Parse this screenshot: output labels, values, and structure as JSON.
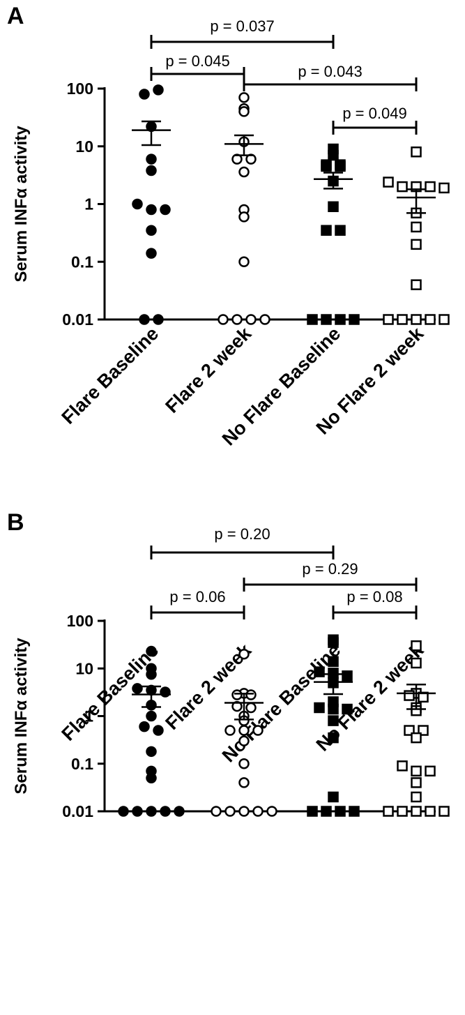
{
  "chart_data": [
    {
      "panel": "A",
      "type": "scatter",
      "ylabel": "Serum INFα activity",
      "yscale": "log",
      "ylim": [
        0.01,
        100
      ],
      "yticks": [
        "0.01",
        "0.1",
        "1",
        "10",
        "100"
      ],
      "categories": [
        "Flare Baseline",
        "Flare 2 week",
        "No Flare Baseline",
        "No Flare 2 week"
      ],
      "groups": [
        {
          "category": "Flare Baseline",
          "marker": "filled-circle",
          "values": [
            80,
            95,
            22,
            6,
            3.8,
            1,
            0.8,
            0.8,
            0.35,
            0.14,
            0.01,
            0.01
          ],
          "mean": 19,
          "sem": [
            10.5,
            27
          ]
        },
        {
          "category": "Flare 2 week",
          "marker": "open-circle",
          "values": [
            45,
            70,
            40,
            12,
            6,
            6,
            3.6,
            0.8,
            0.6,
            0.1,
            0.01,
            0.01,
            0.01,
            0.01
          ],
          "mean": 11,
          "sem": [
            7,
            15.5
          ]
        },
        {
          "category": "No Flare Baseline",
          "marker": "filled-square",
          "values": [
            9,
            7,
            4.8,
            4.8,
            4.5,
            4.5,
            2.5,
            0.9,
            0.35,
            0.35,
            0.01,
            0.01,
            0.01,
            0.01
          ],
          "mean": 2.7,
          "sem": [
            1.85,
            3.5
          ]
        },
        {
          "category": "No Flare 2 week",
          "marker": "open-square",
          "values": [
            8,
            2.4,
            2,
            2,
            2,
            1.9,
            0.7,
            0.4,
            0.2,
            0.04,
            0.01,
            0.01,
            0.01,
            0.01,
            0.01
          ],
          "mean": 1.3,
          "sem": [
            0.7,
            1.8
          ]
        }
      ],
      "comparisons": [
        {
          "from": "Flare Baseline",
          "to": "No Flare Baseline",
          "label": "p = 0.037"
        },
        {
          "from": "Flare Baseline",
          "to": "Flare 2 week",
          "label": "p = 0.045"
        },
        {
          "from": "Flare 2 week",
          "to": "No Flare 2 week",
          "label": "p = 0.043"
        },
        {
          "from": "No Flare Baseline",
          "to": "No Flare 2 week",
          "label": "p = 0.049"
        }
      ]
    },
    {
      "panel": "B",
      "type": "scatter",
      "ylabel": "Serum INFα activity",
      "yscale": "log",
      "ylim": [
        0.01,
        100
      ],
      "yticks": [
        "0.01",
        "0.1",
        "1",
        "10",
        "100"
      ],
      "categories": [
        "Flare Baseline",
        "Flare 2 week",
        "No Flare Baseline",
        "No Flare 2 week"
      ],
      "groups": [
        {
          "category": "Flare Baseline",
          "marker": "filled-circle",
          "values": [
            23,
            10,
            7.5,
            3.8,
            3.5,
            3.2,
            1.7,
            1,
            0.6,
            0.5,
            0.18,
            0.07,
            0.05,
            0.01,
            0.01,
            0.01,
            0.01,
            0.01
          ],
          "mean": 2.85,
          "sem": [
            1.55,
            4.2
          ]
        },
        {
          "category": "Flare 2 week",
          "marker": "open-circle",
          "values": [
            20,
            3,
            2.8,
            2.8,
            1.6,
            1.5,
            1,
            0.8,
            0.5,
            0.5,
            0.5,
            0.3,
            0.1,
            0.04,
            0.01,
            0.01,
            0.01,
            0.01,
            0.01
          ],
          "mean": 1.9,
          "sem": [
            0.85,
            2.95
          ]
        },
        {
          "category": "No Flare Baseline",
          "marker": "filled-square",
          "values": [
            40,
            35,
            14,
            8.5,
            8,
            7,
            5,
            2,
            1.5,
            1.4,
            1.4,
            0.8,
            0.35,
            0.02,
            0.01,
            0.01,
            0.01,
            0.01
          ],
          "mean": 5.2,
          "sem": [
            2.9,
            7.6
          ]
        },
        {
          "category": "No Flare 2 week",
          "marker": "open-square",
          "values": [
            30,
            13,
            3,
            2.7,
            2.5,
            1.5,
            1.3,
            0.5,
            0.5,
            0.35,
            0.09,
            0.07,
            0.07,
            0.04,
            0.02,
            0.01,
            0.01,
            0.01,
            0.01,
            0.01
          ],
          "mean": 3,
          "sem": [
            1.4,
            4.6
          ]
        }
      ],
      "comparisons": [
        {
          "from": "Flare Baseline",
          "to": "No Flare Baseline",
          "label": "p = 0.20"
        },
        {
          "from": "Flare 2 week",
          "to": "No Flare 2 week",
          "label": "p = 0.29"
        },
        {
          "from": "Flare Baseline",
          "to": "Flare 2 week",
          "label": "p = 0.06"
        },
        {
          "from": "No Flare Baseline",
          "to": "No Flare 2 week",
          "label": "p = 0.08"
        }
      ]
    }
  ]
}
